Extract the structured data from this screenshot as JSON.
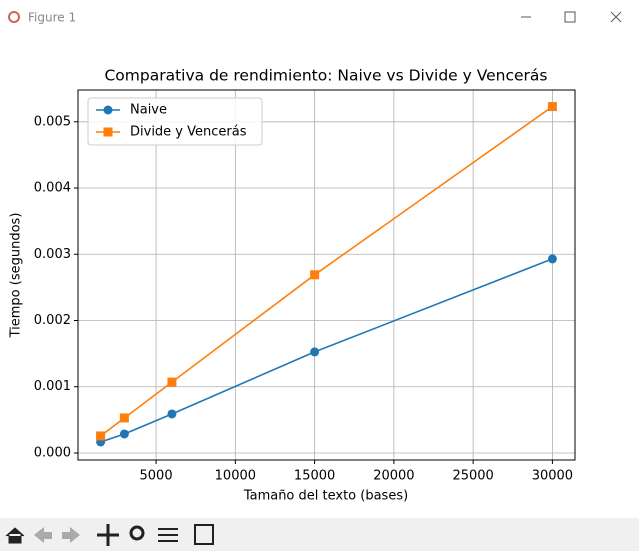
{
  "window": {
    "title": "Figure 1"
  },
  "chart_data": {
    "type": "line",
    "title": "Comparativa de rendimiento: Naive vs Divide y Vencerás",
    "x_label": "Tamaño del texto (bases)",
    "y_label": "Tiempo (segundos)",
    "x": [
      1500,
      3000,
      6000,
      15000,
      30000
    ],
    "series": [
      {
        "name": "Naive",
        "color": "#1f77b4",
        "marker": "circle",
        "values": [
          0.000166,
          0.000287,
          0.000589,
          0.001526,
          0.00293
        ]
      },
      {
        "name": "Divide y Vencerás",
        "color": "#ff7f0e",
        "marker": "square",
        "values": [
          0.000257,
          0.000529,
          0.00107,
          0.00269,
          0.00523
        ]
      }
    ],
    "xlim": [
      75,
      31425
    ],
    "xticks": [
      5000,
      10000,
      15000,
      20000,
      25000,
      30000
    ],
    "ylim": [
      -0.000106,
      0.00548
    ],
    "yticks": [
      {
        "value": 0,
        "label": "0.000"
      },
      {
        "value": 0.001,
        "label": "0.001"
      },
      {
        "value": 0.002,
        "label": "0.002"
      },
      {
        "value": 0.003,
        "label": "0.003"
      },
      {
        "value": 0.004,
        "label": "0.004"
      },
      {
        "value": 0.005,
        "label": "0.005"
      }
    ],
    "grid": true,
    "legend": "upper-left"
  }
}
